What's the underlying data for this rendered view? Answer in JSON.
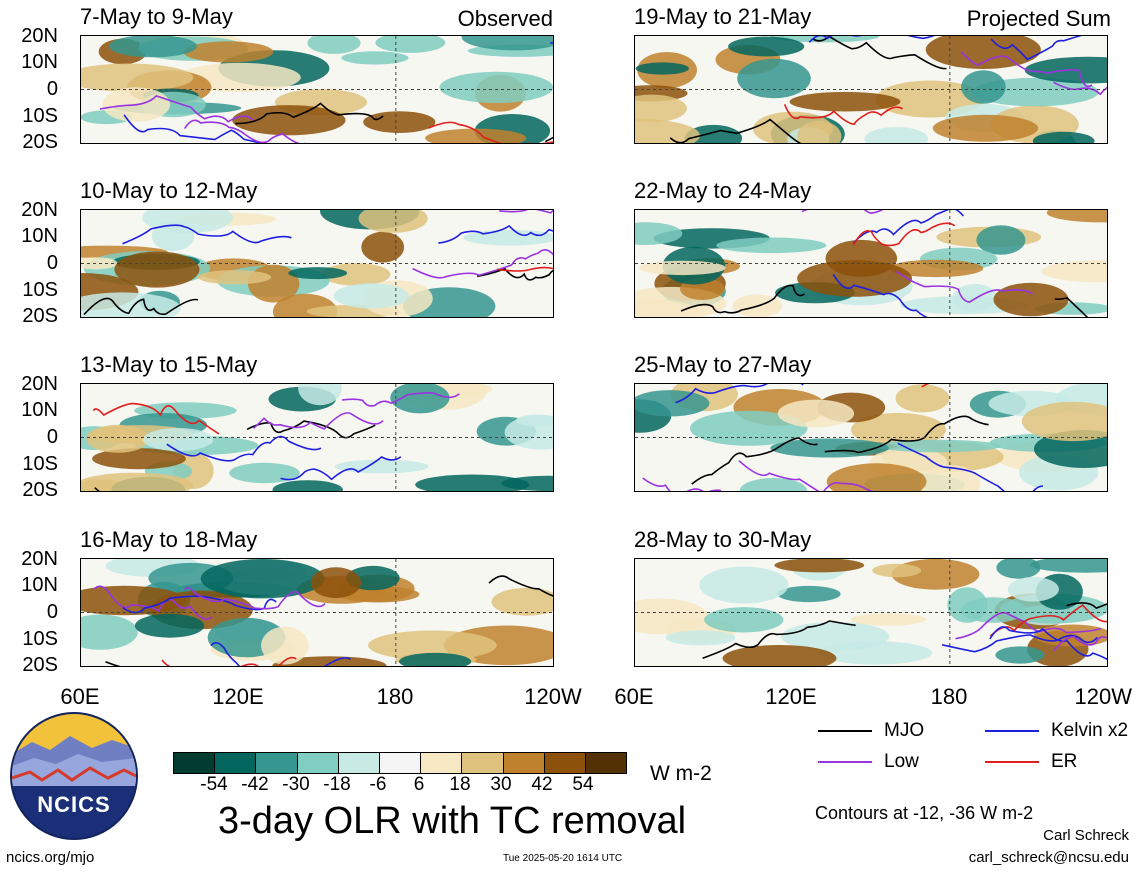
{
  "panels_left": [
    {
      "title": "7-May to 9-May",
      "tag": "Observed"
    },
    {
      "title": "10-May to 12-May",
      "tag": ""
    },
    {
      "title": "13-May to 15-May",
      "tag": ""
    },
    {
      "title": "16-May to 18-May",
      "tag": ""
    }
  ],
  "panels_right": [
    {
      "title": "19-May to 21-May",
      "tag": "Projected Sum"
    },
    {
      "title": "22-May to 24-May",
      "tag": ""
    },
    {
      "title": "25-May to 27-May",
      "tag": ""
    },
    {
      "title": "28-May to 30-May",
      "tag": ""
    }
  ],
  "lat_labels": [
    "20N",
    "10N",
    "0",
    "10S",
    "20S"
  ],
  "lon_labels": [
    "60E",
    "120E",
    "180",
    "120W"
  ],
  "colorbar": {
    "ticks": [
      "-54",
      "-42",
      "-30",
      "-18",
      "-6",
      "6",
      "18",
      "30",
      "42",
      "54"
    ],
    "colors": [
      "#013c30",
      "#02665e",
      "#35978f",
      "#80cdc1",
      "#c7eae5",
      "#f5f5f5",
      "#f6e8c3",
      "#dfc27d",
      "#bf812d",
      "#8c510a",
      "#543005"
    ],
    "units": "W m-2"
  },
  "title": "3-day OLR with TC removal",
  "legend": [
    {
      "label": "MJO",
      "color": "#000000"
    },
    {
      "label": "Kelvin x2",
      "color": "#1f1fe0"
    },
    {
      "label": "Low",
      "color": "#9a33e0"
    },
    {
      "label": "ER",
      "color": "#e01f1f"
    }
  ],
  "contour_note": "Contours at -12, -36 W m-2",
  "author": "Carl Schreck",
  "email": "carl_schreck@ncsu.edu",
  "site": "ncics.org/mjo",
  "timestamp": "Tue 2025-05-20 1614 UTC",
  "logo_text": "NCICS"
}
